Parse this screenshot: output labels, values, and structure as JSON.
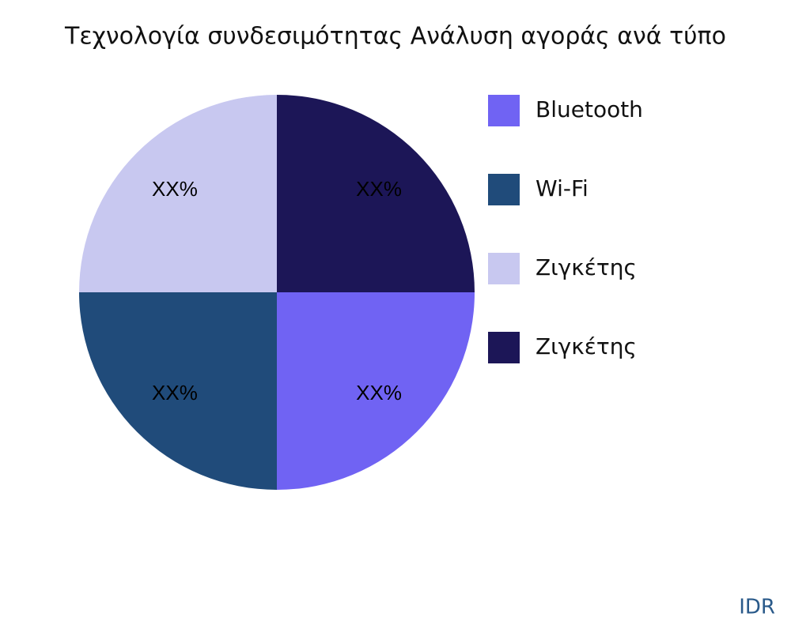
{
  "chart_data": {
    "type": "pie",
    "title": "Τεχνολογία συνδεσιμότητας Ανάλυση αγοράς ανά τύπο",
    "categories": [
      "Bluetooth",
      "Wi-Fi",
      "Ζιγκέτης",
      "Ζιγκέτης"
    ],
    "values": [
      25,
      25,
      25,
      25
    ],
    "value_labels": [
      "XX%",
      "XX%",
      "XX%",
      "XX%"
    ],
    "colors": [
      "#7063f3",
      "#204b7a",
      "#c8c8f0",
      "#1c1657"
    ],
    "start_angle": 90,
    "direction": "clockwise",
    "legend": "right"
  },
  "watermark": "IDR"
}
